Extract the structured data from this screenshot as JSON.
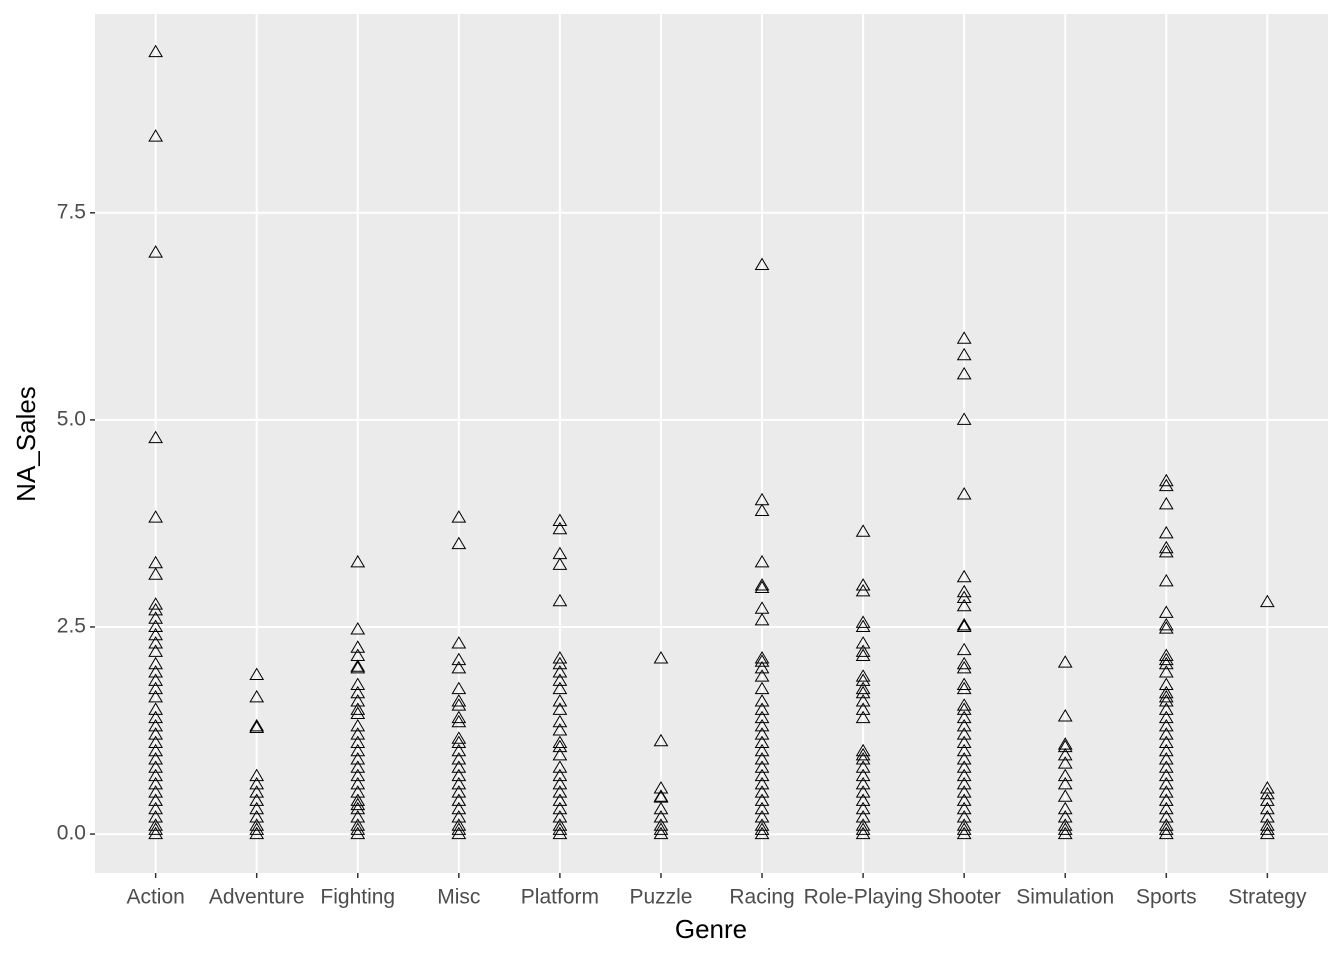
{
  "chart_data": {
    "type": "scatter",
    "x_label": "Genre",
    "y_label": "NA_Sales",
    "categories": [
      "Action",
      "Adventure",
      "Fighting",
      "Misc",
      "Platform",
      "Puzzle",
      "Racing",
      "Role-Playing",
      "Shooter",
      "Simulation",
      "Sports",
      "Strategy"
    ],
    "values": [
      [
        9.44,
        8.42,
        7.02,
        4.78,
        3.82,
        3.27,
        3.13,
        2.77,
        2.7,
        2.6,
        2.5,
        2.4,
        2.3,
        2.2,
        2.05,
        1.95,
        1.85,
        1.75,
        1.65,
        1.5,
        1.4,
        1.3,
        1.2,
        1.1,
        1.0,
        0.9,
        0.8,
        0.7,
        0.6,
        0.5,
        0.4,
        0.3,
        0.2,
        0.1,
        0.05,
        0
      ],
      [
        1.92,
        1.65,
        1.3,
        1.28,
        0.7,
        0.6,
        0.5,
        0.4,
        0.3,
        0.2,
        0.1,
        0.05,
        0
      ],
      [
        3.28,
        2.47,
        2.25,
        2.15,
        2.02,
        2.0,
        1.8,
        1.7,
        1.6,
        1.5,
        1.45,
        1.3,
        1.2,
        1.1,
        1.0,
        0.9,
        0.8,
        0.7,
        0.6,
        0.5,
        0.4,
        0.35,
        0.3,
        0.2,
        0.1,
        0.05,
        0
      ],
      [
        3.82,
        3.5,
        2.3,
        2.1,
        2.0,
        1.75,
        1.6,
        1.55,
        1.4,
        1.35,
        1.15,
        1.1,
        1.0,
        0.9,
        0.8,
        0.7,
        0.6,
        0.5,
        0.4,
        0.3,
        0.2,
        0.1,
        0.05,
        0
      ],
      [
        3.78,
        3.68,
        3.38,
        3.25,
        2.81,
        2.12,
        2.05,
        1.95,
        1.85,
        1.75,
        1.6,
        1.5,
        1.35,
        1.25,
        1.1,
        1.05,
        0.95,
        0.8,
        0.7,
        0.6,
        0.5,
        0.4,
        0.3,
        0.2,
        0.1,
        0.05,
        0
      ],
      [
        2.12,
        1.12,
        0.55,
        0.45,
        0.44,
        0.3,
        0.2,
        0.1,
        0.05,
        0
      ],
      [
        6.87,
        4.03,
        3.9,
        3.28,
        3.0,
        2.97,
        2.72,
        2.58,
        2.12,
        2.08,
        2.0,
        1.9,
        1.75,
        1.6,
        1.5,
        1.4,
        1.3,
        1.2,
        1.1,
        1.0,
        0.9,
        0.8,
        0.7,
        0.6,
        0.5,
        0.4,
        0.3,
        0.2,
        0.1,
        0.05,
        0
      ],
      [
        3.65,
        3.0,
        2.93,
        2.55,
        2.5,
        2.3,
        2.2,
        2.15,
        1.9,
        1.85,
        1.75,
        1.7,
        1.6,
        1.5,
        1.4,
        1.0,
        0.95,
        0.9,
        0.8,
        0.7,
        0.6,
        0.5,
        0.4,
        0.3,
        0.2,
        0.1,
        0.05,
        0
      ],
      [
        5.98,
        5.78,
        5.55,
        5.0,
        4.1,
        3.1,
        2.92,
        2.85,
        2.75,
        2.52,
        2.5,
        2.22,
        2.05,
        2.0,
        1.8,
        1.75,
        1.55,
        1.5,
        1.4,
        1.3,
        1.2,
        1.1,
        1.0,
        0.9,
        0.8,
        0.7,
        0.6,
        0.5,
        0.4,
        0.3,
        0.2,
        0.1,
        0.05,
        0
      ],
      [
        2.07,
        1.42,
        1.08,
        1.05,
        0.95,
        0.85,
        0.7,
        0.6,
        0.45,
        0.3,
        0.2,
        0.1,
        0.05,
        0
      ],
      [
        4.26,
        4.2,
        3.98,
        3.63,
        3.45,
        3.4,
        3.05,
        2.67,
        2.52,
        2.48,
        2.15,
        2.1,
        2.05,
        1.95,
        1.8,
        1.7,
        1.65,
        1.6,
        1.5,
        1.4,
        1.3,
        1.2,
        1.1,
        1.0,
        0.9,
        0.8,
        0.7,
        0.6,
        0.5,
        0.4,
        0.3,
        0.2,
        0.1,
        0.05,
        0
      ],
      [
        2.8,
        0.55,
        0.48,
        0.4,
        0.3,
        0.2,
        0.1,
        0.05,
        0
      ]
    ],
    "color": "#000000",
    "ylim": [
      -0.47,
      9.9
    ],
    "yticks": [
      {
        "value": 0,
        "label": "0.0"
      },
      2.5,
      {
        "value": 5,
        "label": "5.0"
      },
      7.5
    ],
    "grid": true
  }
}
